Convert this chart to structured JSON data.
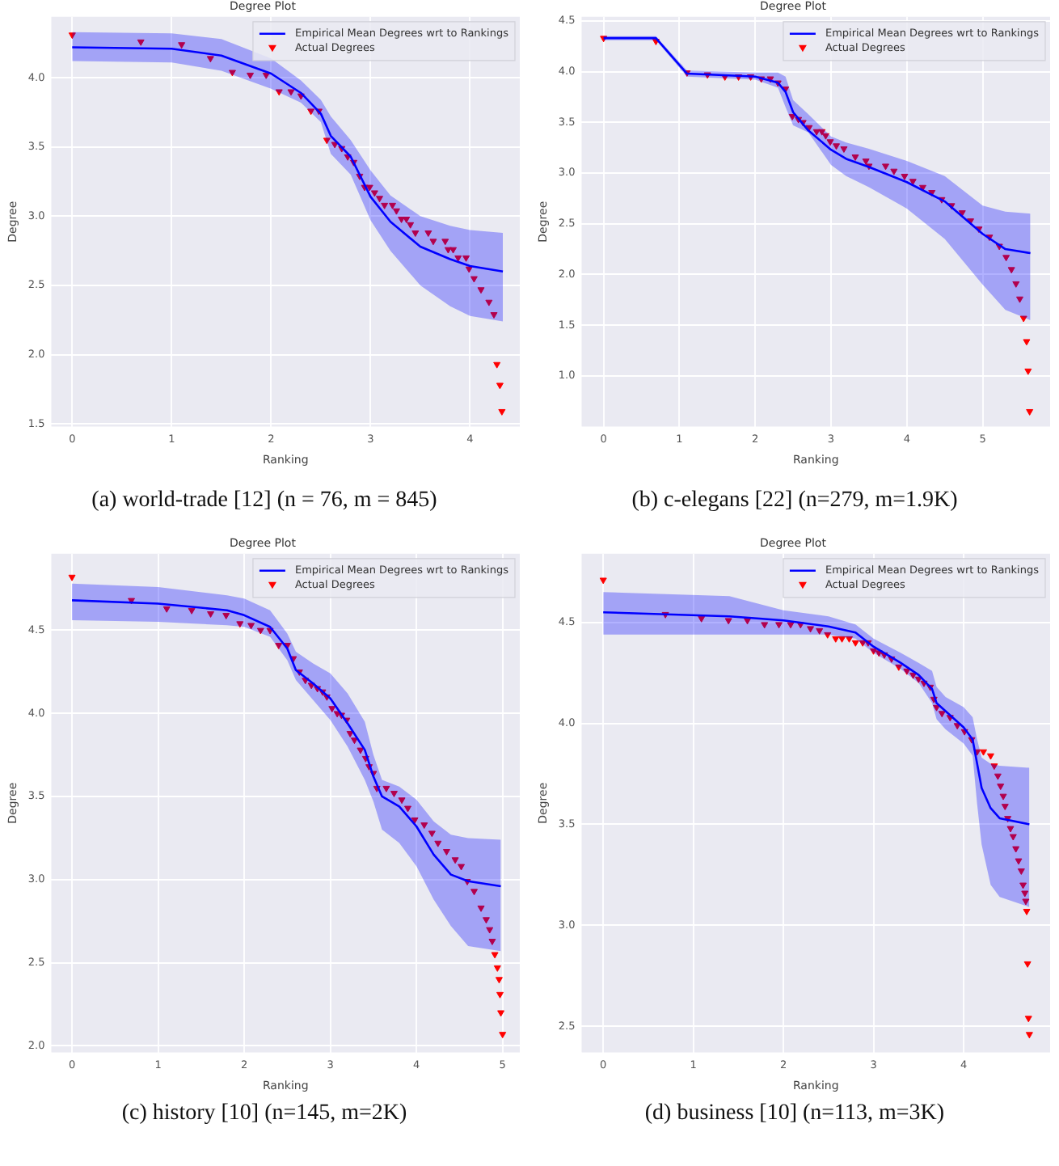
{
  "chart_data": [
    {
      "type": "line",
      "title": "Degree Plot",
      "xlabel": "Ranking",
      "ylabel": "Degree",
      "xlim": [
        -0.21,
        4.5
      ],
      "ylim": [
        1.48,
        4.44
      ],
      "xticks": [
        0,
        1,
        2,
        3,
        4
      ],
      "yticks": [
        1.5,
        {
          "value": 2,
          "label": "2.0"
        },
        2.5,
        {
          "value": 3,
          "label": "3.0"
        },
        3.5,
        {
          "value": 4,
          "label": "4.0"
        }
      ],
      "grid": true,
      "legend": "top right",
      "annotations": [
        "(a) world-trade [12] (n = 76, m = 845)"
      ],
      "series": [
        {
          "name": "Empirical Mean Degrees wrt to Rankings",
          "type": "line",
          "color": "#0000ff",
          "marker": "none",
          "x": [
            0,
            1,
            1.5,
            2,
            2.3,
            2.5,
            2.6,
            2.8,
            3,
            3.2,
            3.5,
            3.8,
            4,
            4.33
          ],
          "values": [
            4.22,
            4.21,
            4.16,
            4.03,
            3.89,
            3.74,
            3.58,
            3.43,
            3.14,
            2.96,
            2.78,
            2.69,
            2.64,
            2.6
          ],
          "upper": [
            4.33,
            4.32,
            4.28,
            4.14,
            3.98,
            3.84,
            3.72,
            3.55,
            3.33,
            3.15,
            3,
            2.93,
            2.9,
            2.88
          ],
          "lower": [
            4.12,
            4.11,
            4.05,
            3.92,
            3.82,
            3.68,
            3.45,
            3.3,
            2.97,
            2.75,
            2.5,
            2.35,
            2.28,
            2.24
          ]
        },
        {
          "name": "Actual Degrees",
          "type": "scatter",
          "color": "#ff0000",
          "marker": "triangle",
          "x": [
            0,
            0.69,
            1.1,
            1.39,
            1.61,
            1.79,
            1.95,
            2.08,
            2.2,
            2.3,
            2.4,
            2.48,
            2.56,
            2.64,
            2.71,
            2.77,
            2.83,
            2.89,
            2.94,
            2.99,
            3.04,
            3.09,
            3.14,
            3.22,
            3.26,
            3.31,
            3.36,
            3.4,
            3.45,
            3.58,
            3.63,
            3.75,
            3.78,
            3.83,
            3.88,
            3.96,
            3.99,
            4.04,
            4.11,
            4.19,
            4.24,
            4.27,
            4.3,
            4.32
          ],
          "values": [
            4.31,
            4.26,
            4.24,
            4.14,
            4.04,
            4.02,
            4.02,
            3.9,
            3.9,
            3.87,
            3.76,
            3.76,
            3.55,
            3.52,
            3.49,
            3.43,
            3.39,
            3.29,
            3.21,
            3.21,
            3.17,
            3.13,
            3.08,
            3.08,
            3.04,
            2.98,
            2.98,
            2.94,
            2.88,
            2.88,
            2.82,
            2.82,
            2.76,
            2.76,
            2.7,
            2.7,
            2.62,
            2.55,
            2.47,
            2.38,
            2.29,
            1.93,
            1.78,
            1.59
          ]
        }
      ]
    },
    {
      "type": "line",
      "title": "Degree Plot",
      "xlabel": "Ranking",
      "ylabel": "Degree",
      "xlim": [
        -0.29,
        5.89
      ],
      "ylim": [
        0.5,
        4.54
      ],
      "xticks": [
        0,
        1,
        2,
        3,
        4,
        5
      ],
      "yticks": [
        {
          "value": 1,
          "label": "1.0"
        },
        1.5,
        {
          "value": 2,
          "label": "2.0"
        },
        2.5,
        {
          "value": 3,
          "label": "3.0"
        },
        3.5,
        {
          "value": 4,
          "label": "4.0"
        },
        4.5
      ],
      "grid": true,
      "legend": "top right",
      "annotations": [
        "(b) c-elegans [22] (n=279, m=1.9K)"
      ],
      "series": [
        {
          "name": "Empirical Mean Degrees wrt to Rankings",
          "type": "line",
          "color": "#0000ff",
          "marker": "none",
          "x": [
            0,
            0.69,
            1.1,
            2,
            2.3,
            2.4,
            2.5,
            2.7,
            3,
            3.2,
            3.5,
            4,
            4.5,
            5,
            5.3,
            5.63
          ],
          "values": [
            4.33,
            4.33,
            3.98,
            3.95,
            3.89,
            3.8,
            3.6,
            3.42,
            3.23,
            3.14,
            3.06,
            2.91,
            2.72,
            2.4,
            2.25,
            2.21
          ],
          "upper": [
            4.35,
            4.35,
            4.01,
            3.99,
            3.99,
            3.95,
            3.72,
            3.58,
            3.36,
            3.3,
            3.24,
            3.12,
            2.97,
            2.68,
            2.62,
            2.6
          ],
          "lower": [
            4.31,
            4.31,
            3.95,
            3.92,
            3.84,
            3.65,
            3.47,
            3.4,
            3.08,
            2.97,
            2.86,
            2.65,
            2.35,
            1.9,
            1.65,
            1.55
          ]
        },
        {
          "name": "Actual Degrees",
          "type": "scatter",
          "color": "#ff0000",
          "marker": "triangle",
          "x": [
            0,
            0.69,
            1.1,
            1.37,
            1.6,
            1.78,
            1.94,
            2.08,
            2.2,
            2.3,
            2.4,
            2.49,
            2.57,
            2.63,
            2.71,
            2.81,
            2.88,
            2.93,
            2.99,
            3.07,
            3.17,
            3.32,
            3.46,
            3.5,
            3.72,
            3.83,
            3.97,
            4.08,
            4.21,
            4.33,
            4.46,
            4.59,
            4.73,
            4.84,
            4.95,
            5.09,
            5.22,
            5.31,
            5.38,
            5.44,
            5.49,
            5.54,
            5.58,
            5.6,
            5.62
          ],
          "values": [
            4.33,
            4.3,
            3.99,
            3.97,
            3.95,
            3.95,
            3.95,
            3.93,
            3.93,
            3.89,
            3.83,
            3.56,
            3.53,
            3.5,
            3.45,
            3.41,
            3.41,
            3.37,
            3.31,
            3.27,
            3.24,
            3.16,
            3.12,
            3.07,
            3.07,
            3.02,
            2.97,
            2.92,
            2.86,
            2.81,
            2.74,
            2.68,
            2.61,
            2.53,
            2.45,
            2.37,
            2.28,
            2.17,
            2.05,
            1.91,
            1.76,
            1.57,
            1.34,
            1.05,
            0.65
          ]
        }
      ]
    },
    {
      "type": "line",
      "title": "Degree Plot",
      "xlabel": "Ranking",
      "ylabel": "Degree",
      "xlim": [
        -0.24,
        5.2
      ],
      "ylim": [
        1.96,
        4.96
      ],
      "xticks": [
        0,
        1,
        2,
        3,
        4,
        5
      ],
      "yticks": [
        {
          "value": 2,
          "label": "2.0"
        },
        2.5,
        {
          "value": 3,
          "label": "3.0"
        },
        3.5,
        {
          "value": 4,
          "label": "4.0"
        },
        4.5
      ],
      "grid": true,
      "legend": "top right",
      "annotations": [
        "(c) history [10] (n=145, m=2K)"
      ],
      "series": [
        {
          "name": "Empirical Mean Degrees wrt to Rankings",
          "type": "line",
          "color": "#0000ff",
          "marker": "none",
          "x": [
            0,
            1,
            1.8,
            2,
            2.3,
            2.5,
            2.6,
            2.8,
            3,
            3.2,
            3.4,
            3.5,
            3.6,
            3.8,
            4,
            4.2,
            4.4,
            4.6,
            4.98
          ],
          "values": [
            4.68,
            4.66,
            4.62,
            4.59,
            4.52,
            4.39,
            4.26,
            4.18,
            4.09,
            3.94,
            3.78,
            3.62,
            3.5,
            3.44,
            3.32,
            3.15,
            3.03,
            2.99,
            2.96
          ],
          "upper": [
            4.78,
            4.76,
            4.71,
            4.69,
            4.62,
            4.48,
            4.37,
            4.3,
            4.24,
            4.12,
            3.95,
            3.75,
            3.6,
            3.56,
            3.48,
            3.35,
            3.27,
            3.25,
            3.24
          ],
          "lower": [
            4.56,
            4.55,
            4.53,
            4.52,
            4.46,
            4.32,
            4.2,
            4.08,
            3.96,
            3.8,
            3.6,
            3.47,
            3.3,
            3.22,
            3.08,
            2.88,
            2.72,
            2.6,
            2.57
          ]
        },
        {
          "name": "Actual Degrees",
          "type": "scatter",
          "color": "#ff0000",
          "marker": "triangle",
          "x": [
            0,
            0.69,
            1.1,
            1.39,
            1.61,
            1.79,
            1.95,
            2.08,
            2.19,
            2.3,
            2.4,
            2.5,
            2.57,
            2.64,
            2.71,
            2.78,
            2.85,
            2.91,
            2.96,
            3.02,
            3.08,
            3.13,
            3.19,
            3.23,
            3.28,
            3.35,
            3.41,
            3.45,
            3.5,
            3.54,
            3.65,
            3.74,
            3.83,
            3.9,
            3.98,
            4.09,
            4.18,
            4.25,
            4.35,
            4.45,
            4.52,
            4.59,
            4.67,
            4.75,
            4.81,
            4.85,
            4.88,
            4.91,
            4.94,
            4.96,
            4.97,
            4.98,
            5
          ],
          "values": [
            4.82,
            4.68,
            4.63,
            4.62,
            4.6,
            4.59,
            4.54,
            4.53,
            4.5,
            4.5,
            4.41,
            4.41,
            4.33,
            4.25,
            4.2,
            4.17,
            4.15,
            4.13,
            4.1,
            4.03,
            4,
            3.99,
            3.96,
            3.88,
            3.84,
            3.78,
            3.73,
            3.68,
            3.64,
            3.55,
            3.55,
            3.52,
            3.48,
            3.43,
            3.36,
            3.33,
            3.28,
            3.22,
            3.17,
            3.12,
            3.08,
            2.99,
            2.93,
            2.83,
            2.76,
            2.7,
            2.63,
            2.55,
            2.47,
            2.4,
            2.31,
            2.2,
            2.07
          ]
        }
      ]
    },
    {
      "type": "line",
      "title": "Degree Plot",
      "xlabel": "Ranking",
      "ylabel": "Degree",
      "xlim": [
        -0.24,
        4.96
      ],
      "ylim": [
        2.37,
        4.84
      ],
      "xticks": [
        0,
        1,
        2,
        3,
        4
      ],
      "yticks": [
        2.5,
        {
          "value": 3,
          "label": "3.0"
        },
        3.5,
        {
          "value": 4,
          "label": "4.0"
        },
        4.5
      ],
      "grid": true,
      "legend": "top right",
      "annotations": [
        "(d) business [10] (n=113, m=3K)"
      ],
      "series": [
        {
          "name": "Empirical Mean Degrees wrt to Rankings",
          "type": "line",
          "color": "#0000ff",
          "marker": "none",
          "x": [
            0,
            1.4,
            2,
            2.5,
            2.8,
            3,
            3.3,
            3.5,
            3.65,
            3.7,
            3.8,
            4,
            4.1,
            4.15,
            4.2,
            4.3,
            4.4,
            4.73
          ],
          "values": [
            4.55,
            4.53,
            4.51,
            4.48,
            4.45,
            4.38,
            4.3,
            4.24,
            4.17,
            4.1,
            4.06,
            3.98,
            3.92,
            3.8,
            3.68,
            3.58,
            3.53,
            3.5
          ],
          "upper": [
            4.65,
            4.63,
            4.56,
            4.53,
            4.49,
            4.42,
            4.35,
            4.3,
            4.26,
            4.18,
            4.13,
            4.08,
            4.03,
            3.92,
            3.83,
            3.8,
            3.79,
            3.78
          ],
          "lower": [
            4.44,
            4.44,
            4.44,
            4.44,
            4.42,
            4.35,
            4.27,
            4.2,
            4.1,
            4.02,
            3.97,
            3.9,
            3.84,
            3.6,
            3.4,
            3.2,
            3.14,
            3.09
          ]
        },
        {
          "name": "Actual Degrees",
          "type": "scatter",
          "color": "#ff0000",
          "marker": "triangle",
          "x": [
            0,
            0.69,
            1.09,
            1.39,
            1.6,
            1.79,
            1.95,
            2.08,
            2.19,
            2.3,
            2.4,
            2.49,
            2.58,
            2.65,
            2.73,
            2.8,
            2.88,
            2.94,
            3,
            3.06,
            3.12,
            3.2,
            3.28,
            3.37,
            3.44,
            3.5,
            3.56,
            3.63,
            3.67,
            3.7,
            3.76,
            3.85,
            3.93,
            4.01,
            4.09,
            4.15,
            4.22,
            4.3,
            4.34,
            4.38,
            4.41,
            4.44,
            4.46,
            4.49,
            4.52,
            4.55,
            4.58,
            4.61,
            4.64,
            4.66,
            4.68,
            4.69,
            4.7,
            4.71,
            4.72,
            4.73
          ],
          "values": [
            4.71,
            4.54,
            4.52,
            4.51,
            4.51,
            4.49,
            4.49,
            4.49,
            4.49,
            4.47,
            4.46,
            4.44,
            4.42,
            4.42,
            4.42,
            4.4,
            4.4,
            4.4,
            4.36,
            4.35,
            4.34,
            4.32,
            4.28,
            4.26,
            4.24,
            4.22,
            4.2,
            4.18,
            4.12,
            4.08,
            4.05,
            4.03,
            3.99,
            3.96,
            3.92,
            3.86,
            3.86,
            3.84,
            3.79,
            3.74,
            3.69,
            3.64,
            3.59,
            3.53,
            3.48,
            3.44,
            3.38,
            3.32,
            3.27,
            3.2,
            3.16,
            3.12,
            3.07,
            2.81,
            2.54,
            2.46
          ]
        }
      ]
    }
  ]
}
